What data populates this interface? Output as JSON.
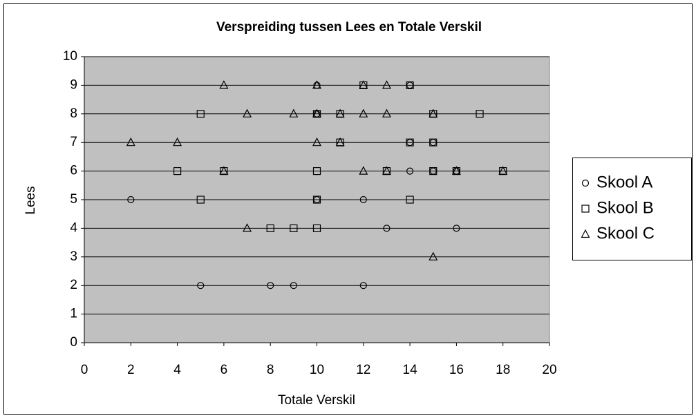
{
  "chart_data": {
    "type": "scatter",
    "title": "Verspreiding tussen Lees en Totale Verskil",
    "x_label": "Totale Verskil",
    "y_label": "Lees",
    "xlim": [
      0,
      20
    ],
    "xticks": [
      0,
      2,
      4,
      6,
      8,
      10,
      12,
      14,
      16,
      18,
      20
    ],
    "ylim": [
      0,
      10
    ],
    "yticks": [
      0,
      1,
      2,
      3,
      4,
      5,
      6,
      7,
      8,
      9,
      10
    ],
    "grid": true,
    "legend": "right",
    "background": "#c0c0c0",
    "series": [
      {
        "name": "Skool A",
        "color": "#000000",
        "marker": "circle",
        "x": [
          2,
          5,
          8,
          9,
          12,
          13,
          16,
          12,
          10,
          14,
          16,
          15,
          14,
          15,
          10,
          10,
          14
        ],
        "values": [
          5,
          2,
          2,
          2,
          2,
          4,
          4,
          5,
          5,
          6,
          6,
          6,
          7,
          7,
          8,
          9,
          9
        ]
      },
      {
        "name": "Skool B",
        "color": "#000000",
        "marker": "square",
        "x": [
          5,
          4,
          6,
          5,
          8,
          9,
          10,
          10,
          10,
          11,
          11,
          12,
          14,
          14,
          15,
          15,
          17,
          14,
          13,
          15,
          16,
          18,
          10
        ],
        "values": [
          8,
          6,
          6,
          5,
          4,
          4,
          4,
          5,
          6,
          7,
          8,
          9,
          9,
          7,
          7,
          8,
          8,
          5,
          6,
          6,
          6,
          6,
          8
        ]
      },
      {
        "name": "Skool C",
        "color": "#000000",
        "marker": "triangle",
        "x": [
          2,
          4,
          6,
          6,
          7,
          7,
          9,
          10,
          10,
          10,
          11,
          11,
          12,
          12,
          12,
          13,
          13,
          13,
          15,
          15,
          16,
          18
        ],
        "values": [
          7,
          7,
          9,
          6,
          8,
          4,
          8,
          9,
          8,
          7,
          8,
          7,
          9,
          8,
          6,
          9,
          8,
          6,
          8,
          3,
          6,
          6
        ]
      }
    ]
  }
}
